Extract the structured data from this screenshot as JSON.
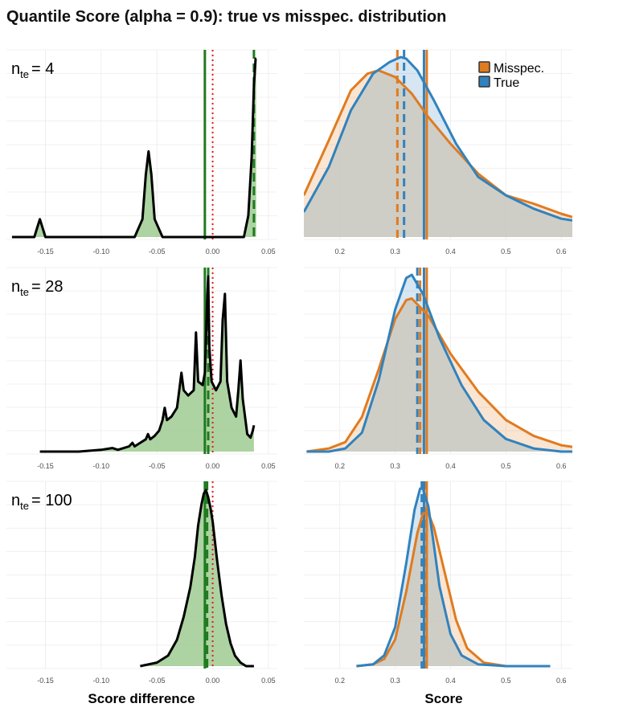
{
  "title": "Quantile Score (alpha = 0.9): true vs misspec. distribution",
  "x_label_left": "Score difference",
  "x_label_right": "Score",
  "legend": [
    {
      "label": "Misspec.",
      "color": "#e07b20"
    },
    {
      "label": "True",
      "color": "#3182bd"
    }
  ],
  "colors": {
    "misspec": "#e07b20",
    "true": "#3182bd",
    "diff_fill": "#9ecb91",
    "diff_line": "#000000",
    "mean_line": "#1f7a1f",
    "zero_line": "#e41a1c",
    "overlap_fill": "#cdcdc7",
    "grid": "#ebebeb"
  },
  "left_ticks": [
    "-0.15",
    "-0.10",
    "-0.05",
    "0.00",
    "0.05"
  ],
  "right_ticks": [
    "0.2",
    "0.3",
    "0.4",
    "0.5",
    "0.6"
  ],
  "chart_data": [
    {
      "type": "area",
      "panel": "difference",
      "n_te": "4",
      "n_label": "n_te = 4",
      "xlim": [
        -0.185,
        0.058
      ],
      "x": [
        -0.18,
        -0.16,
        -0.157,
        -0.155,
        -0.153,
        -0.15,
        -0.12,
        -0.07,
        -0.063,
        -0.06,
        -0.0575,
        -0.055,
        -0.052,
        -0.045,
        0.0,
        0.028,
        0.032,
        0.035,
        0.037,
        0.0385,
        0.039
      ],
      "density": [
        0.0,
        0.0,
        0.06,
        0.1,
        0.06,
        0.0,
        0.0,
        0.0,
        0.1,
        0.35,
        0.48,
        0.35,
        0.1,
        0.0,
        0.0,
        0.0,
        0.12,
        0.45,
        0.85,
        1.0,
        1.0
      ],
      "mean_line": -0.007,
      "dashed_line": 0.037,
      "zero_line": 0.0
    },
    {
      "type": "line",
      "panel": "score",
      "n_te": "4",
      "xlim": [
        0.135,
        0.62
      ],
      "series": [
        {
          "name": "Misspec.",
          "x": [
            0.135,
            0.18,
            0.22,
            0.25,
            0.27,
            0.3,
            0.33,
            0.36,
            0.4,
            0.45,
            0.5,
            0.55,
            0.6,
            0.62
          ],
          "density": [
            0.25,
            0.58,
            0.88,
            0.98,
            1.0,
            0.96,
            0.86,
            0.72,
            0.56,
            0.38,
            0.25,
            0.2,
            0.14,
            0.12
          ]
        },
        {
          "name": "True",
          "x": [
            0.135,
            0.18,
            0.22,
            0.26,
            0.29,
            0.31,
            0.32,
            0.34,
            0.37,
            0.41,
            0.45,
            0.5,
            0.55,
            0.6,
            0.62
          ],
          "density": [
            0.15,
            0.42,
            0.76,
            0.98,
            1.05,
            1.08,
            1.07,
            1.0,
            0.82,
            0.56,
            0.36,
            0.25,
            0.17,
            0.11,
            0.1
          ]
        }
      ],
      "vlines": {
        "misspec_solid": 0.357,
        "true_solid": 0.352,
        "misspec_dashed": 0.304,
        "true_dashed": 0.316
      }
    },
    {
      "type": "area",
      "panel": "difference",
      "n_te": "28",
      "n_label": "n_te = 28",
      "xlim": [
        -0.185,
        0.058
      ],
      "x": [
        -0.155,
        -0.12,
        -0.1,
        -0.09,
        -0.085,
        -0.075,
        -0.072,
        -0.07,
        -0.065,
        -0.06,
        -0.058,
        -0.056,
        -0.052,
        -0.048,
        -0.045,
        -0.043,
        -0.041,
        -0.037,
        -0.032,
        -0.03,
        -0.028,
        -0.026,
        -0.022,
        -0.017,
        -0.015,
        -0.013,
        -0.009,
        -0.007,
        -0.005,
        -0.004,
        -0.003,
        -0.001,
        0.003,
        0.007,
        0.009,
        0.011,
        0.013,
        0.017,
        0.021,
        0.023,
        0.025,
        0.027,
        0.031,
        0.034,
        0.036,
        0.037
      ],
      "density": [
        0.0,
        0.0,
        0.01,
        0.02,
        0.01,
        0.03,
        0.05,
        0.03,
        0.05,
        0.07,
        0.1,
        0.07,
        0.09,
        0.12,
        0.18,
        0.25,
        0.18,
        0.2,
        0.25,
        0.35,
        0.45,
        0.35,
        0.32,
        0.35,
        0.68,
        0.4,
        0.38,
        0.45,
        0.85,
        1.0,
        0.6,
        0.4,
        0.35,
        0.4,
        0.75,
        0.9,
        0.4,
        0.25,
        0.2,
        0.35,
        0.52,
        0.3,
        0.1,
        0.08,
        0.12,
        0.15
      ],
      "mean_line": -0.007,
      "dashed_line": -0.004,
      "zero_line": 0.0
    },
    {
      "type": "line",
      "panel": "score",
      "n_te": "28",
      "xlim": [
        0.135,
        0.62
      ],
      "series": [
        {
          "name": "Misspec.",
          "x": [
            0.14,
            0.18,
            0.21,
            0.24,
            0.27,
            0.3,
            0.32,
            0.33,
            0.36,
            0.4,
            0.45,
            0.5,
            0.55,
            0.6,
            0.62
          ],
          "density": [
            0.0,
            0.02,
            0.06,
            0.22,
            0.52,
            0.84,
            0.96,
            0.97,
            0.86,
            0.62,
            0.38,
            0.2,
            0.1,
            0.04,
            0.03
          ]
        },
        {
          "name": "True",
          "x": [
            0.14,
            0.18,
            0.21,
            0.24,
            0.27,
            0.3,
            0.32,
            0.33,
            0.35,
            0.38,
            0.42,
            0.46,
            0.5,
            0.55,
            0.6,
            0.62
          ],
          "density": [
            0.0,
            0.0,
            0.02,
            0.12,
            0.45,
            0.9,
            1.1,
            1.12,
            1.0,
            0.72,
            0.42,
            0.2,
            0.08,
            0.02,
            0.0,
            0.0
          ]
        }
      ],
      "vlines": {
        "misspec_solid": 0.357,
        "true_solid": 0.352,
        "misspec_dashed": 0.345,
        "true_dashed": 0.34
      }
    },
    {
      "type": "area",
      "panel": "difference",
      "n_te": "100",
      "n_label": "n_te = 100",
      "xlim": [
        -0.185,
        0.058
      ],
      "x": [
        -0.065,
        -0.05,
        -0.04,
        -0.032,
        -0.026,
        -0.02,
        -0.016,
        -0.013,
        -0.01,
        -0.008,
        -0.006,
        -0.004,
        -0.002,
        0.0,
        0.004,
        0.008,
        0.012,
        0.016,
        0.02,
        0.025,
        0.03,
        0.037
      ],
      "density": [
        0.0,
        0.02,
        0.06,
        0.15,
        0.28,
        0.45,
        0.62,
        0.8,
        0.92,
        0.98,
        1.0,
        0.96,
        0.9,
        0.82,
        0.6,
        0.4,
        0.24,
        0.13,
        0.06,
        0.02,
        0.0,
        0.0
      ],
      "mean_line": -0.007,
      "dashed_line": -0.005,
      "zero_line": 0.0
    },
    {
      "type": "line",
      "panel": "score",
      "n_te": "100",
      "xlim": [
        0.135,
        0.62
      ],
      "series": [
        {
          "name": "Misspec.",
          "x": [
            0.23,
            0.26,
            0.28,
            0.3,
            0.32,
            0.34,
            0.35,
            0.36,
            0.37,
            0.39,
            0.41,
            0.43,
            0.46,
            0.5,
            0.55,
            0.58
          ],
          "density": [
            0.0,
            0.01,
            0.04,
            0.15,
            0.42,
            0.75,
            0.86,
            0.86,
            0.78,
            0.52,
            0.26,
            0.1,
            0.02,
            0.0,
            0.0,
            0.0
          ]
        },
        {
          "name": "True",
          "x": [
            0.23,
            0.26,
            0.28,
            0.3,
            0.32,
            0.335,
            0.345,
            0.35,
            0.36,
            0.37,
            0.38,
            0.4,
            0.42,
            0.45,
            0.5,
            0.55,
            0.58
          ],
          "density": [
            0.0,
            0.01,
            0.06,
            0.22,
            0.58,
            0.88,
            1.0,
            1.0,
            0.9,
            0.68,
            0.45,
            0.18,
            0.06,
            0.01,
            0.0,
            0.0,
            0.0
          ]
        }
      ],
      "vlines": {
        "misspec_solid": 0.357,
        "true_solid": 0.352,
        "misspec_dashed": 0.353,
        "true_dashed": 0.348
      }
    }
  ]
}
